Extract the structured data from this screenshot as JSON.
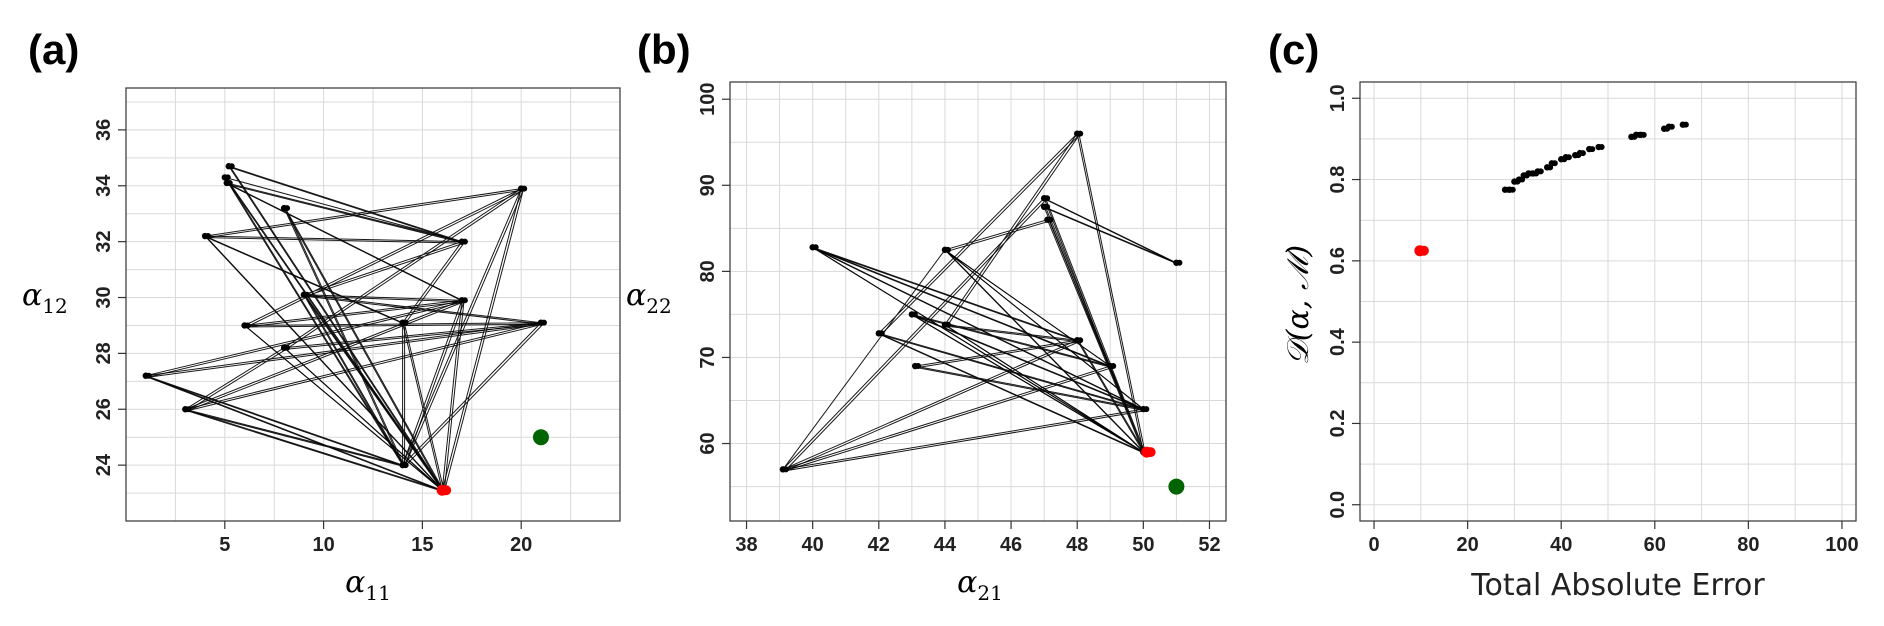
{
  "panels": {
    "a": {
      "label": "(a)"
    },
    "b": {
      "label": "(b)"
    },
    "c": {
      "label": "(c)"
    }
  },
  "colors": {
    "current": "#ff0000",
    "target": "#006400",
    "points": "#000000"
  },
  "chart_data": [
    {
      "id": "a",
      "type": "scatter",
      "title": "",
      "xlabel": {
        "symbol": "α",
        "sub": "11"
      },
      "ylabel": {
        "symbol": "α",
        "sub": "12"
      },
      "xlim": [
        0,
        25
      ],
      "ylim": [
        22,
        37.5
      ],
      "xticks": [
        5,
        10,
        15,
        20
      ],
      "yticks": [
        24,
        26,
        28,
        30,
        32,
        34,
        36
      ],
      "grid": true,
      "points": [
        [
          5,
          34.3
        ],
        [
          5.2,
          34.7
        ],
        [
          5.1,
          34.1
        ],
        [
          17,
          32
        ],
        [
          4,
          32.2
        ],
        [
          8,
          33.2
        ],
        [
          20,
          33.9
        ],
        [
          9,
          30.1
        ],
        [
          14,
          29.1
        ],
        [
          17,
          29.9
        ],
        [
          21,
          29.1
        ],
        [
          6,
          29
        ],
        [
          1,
          27.2
        ],
        [
          8,
          28.2
        ],
        [
          3,
          26
        ],
        [
          14,
          24
        ],
        [
          16,
          23.1
        ]
      ],
      "path": [
        [
          5,
          34.3
        ],
        [
          17,
          32
        ],
        [
          4,
          32.2
        ],
        [
          20,
          33.9
        ],
        [
          6,
          29
        ],
        [
          21,
          29.1
        ],
        [
          14,
          24
        ],
        [
          3,
          26
        ],
        [
          17,
          29.9
        ],
        [
          16,
          23.1
        ],
        [
          8,
          33.2
        ],
        [
          14,
          24
        ],
        [
          1,
          27.2
        ],
        [
          21,
          29.1
        ],
        [
          9,
          30.1
        ],
        [
          16,
          23.1
        ],
        [
          5.2,
          34.7
        ],
        [
          17,
          32
        ],
        [
          14,
          29.1
        ],
        [
          16,
          23.1
        ],
        [
          20,
          33.9
        ],
        [
          8,
          28.2
        ],
        [
          3,
          26
        ],
        [
          14,
          24
        ],
        [
          17,
          29.9
        ],
        [
          5.1,
          34.1
        ],
        [
          17,
          32
        ],
        [
          9,
          30.1
        ],
        [
          21,
          29.1
        ],
        [
          6,
          29
        ],
        [
          17,
          29.9
        ],
        [
          16,
          23.1
        ],
        [
          4,
          32.2
        ],
        [
          14,
          29.1
        ],
        [
          14,
          24
        ],
        [
          20,
          33.9
        ],
        [
          16,
          23.1
        ],
        [
          8,
          28.2
        ],
        [
          21,
          29.1
        ],
        [
          3,
          26
        ],
        [
          16,
          23.1
        ],
        [
          17,
          29.9
        ],
        [
          9,
          30.1
        ],
        [
          14,
          24
        ],
        [
          5,
          34.3
        ],
        [
          16,
          23.1
        ],
        [
          1,
          27.2
        ],
        [
          17,
          29.9
        ],
        [
          6,
          29
        ],
        [
          16,
          23.1
        ],
        [
          8,
          33.2
        ],
        [
          16,
          23.1
        ]
      ],
      "current": [
        16,
        23.1
      ],
      "target": [
        21,
        25
      ]
    },
    {
      "id": "b",
      "type": "scatter",
      "title": "",
      "xlabel": {
        "symbol": "α",
        "sub": "21"
      },
      "ylabel": {
        "symbol": "α",
        "sub": "22"
      },
      "xlim": [
        37.5,
        52.5
      ],
      "ylim": [
        51,
        102
      ],
      "xticks": [
        38,
        40,
        42,
        44,
        46,
        48,
        50,
        52
      ],
      "yticks": [
        60,
        70,
        80,
        90,
        100
      ],
      "grid": true,
      "points": [
        [
          39.1,
          57
        ],
        [
          40,
          82.8
        ],
        [
          42,
          72.8
        ],
        [
          43,
          75
        ],
        [
          43.1,
          69
        ],
        [
          44,
          82.5
        ],
        [
          44,
          73.8
        ],
        [
          47,
          88.5
        ],
        [
          47.1,
          86
        ],
        [
          47,
          87.5
        ],
        [
          48,
          96
        ],
        [
          48,
          72
        ],
        [
          49,
          69
        ],
        [
          50,
          64
        ],
        [
          50,
          59
        ],
        [
          51,
          81
        ]
      ],
      "path": [
        [
          39.1,
          57
        ],
        [
          44,
          82.5
        ],
        [
          50,
          59
        ],
        [
          40,
          82.8
        ],
        [
          50,
          64
        ],
        [
          42,
          72.8
        ],
        [
          48,
          96
        ],
        [
          50,
          59
        ],
        [
          43,
          75
        ],
        [
          49,
          69
        ],
        [
          39.1,
          57
        ],
        [
          47,
          88.5
        ],
        [
          50,
          59
        ],
        [
          44,
          73.8
        ],
        [
          48,
          72
        ],
        [
          43.1,
          69
        ],
        [
          50,
          64
        ],
        [
          39.1,
          57
        ],
        [
          48,
          72
        ],
        [
          40,
          82.8
        ],
        [
          49,
          69
        ],
        [
          44,
          82.5
        ],
        [
          47.1,
          86
        ],
        [
          50,
          59
        ],
        [
          43,
          75
        ],
        [
          50,
          64
        ],
        [
          42,
          72.8
        ],
        [
          50,
          59
        ],
        [
          47,
          87.5
        ],
        [
          51,
          81
        ],
        [
          47,
          88.5
        ],
        [
          50,
          59
        ],
        [
          48,
          96
        ],
        [
          44,
          73.8
        ],
        [
          50,
          59
        ],
        [
          44,
          82.5
        ],
        [
          50,
          64
        ],
        [
          39.1,
          57
        ],
        [
          48,
          72
        ],
        [
          50,
          59
        ]
      ],
      "current": [
        50.1,
        59
      ],
      "target": [
        51,
        55
      ]
    },
    {
      "id": "c",
      "type": "scatter",
      "title": "",
      "xlabel": "Total Absolute Error",
      "ylabel": "𝒟(α, ℳ)",
      "xlim": [
        -3,
        103
      ],
      "ylim": [
        -0.04,
        1.04
      ],
      "xticks": [
        0,
        20,
        40,
        60,
        80,
        100
      ],
      "yticks": [
        0.0,
        0.2,
        0.4,
        0.6,
        0.8,
        1.0
      ],
      "ytick_labels": [
        "0.0",
        "0.2",
        "0.4",
        "0.6",
        "0.8",
        "1.0"
      ],
      "grid": true,
      "points": [
        [
          28,
          0.775
        ],
        [
          29,
          0.775
        ],
        [
          30,
          0.795
        ],
        [
          31,
          0.8
        ],
        [
          32,
          0.81
        ],
        [
          33,
          0.815
        ],
        [
          34,
          0.815
        ],
        [
          35,
          0.82
        ],
        [
          37,
          0.83
        ],
        [
          38,
          0.84
        ],
        [
          40,
          0.85
        ],
        [
          41,
          0.855
        ],
        [
          43,
          0.86
        ],
        [
          44,
          0.865
        ],
        [
          46,
          0.875
        ],
        [
          48,
          0.88
        ],
        [
          55,
          0.905
        ],
        [
          56,
          0.91
        ],
        [
          57,
          0.91
        ],
        [
          62,
          0.925
        ],
        [
          63,
          0.93
        ],
        [
          66,
          0.935
        ]
      ],
      "current": [
        9.8,
        0.625
      ]
    }
  ]
}
